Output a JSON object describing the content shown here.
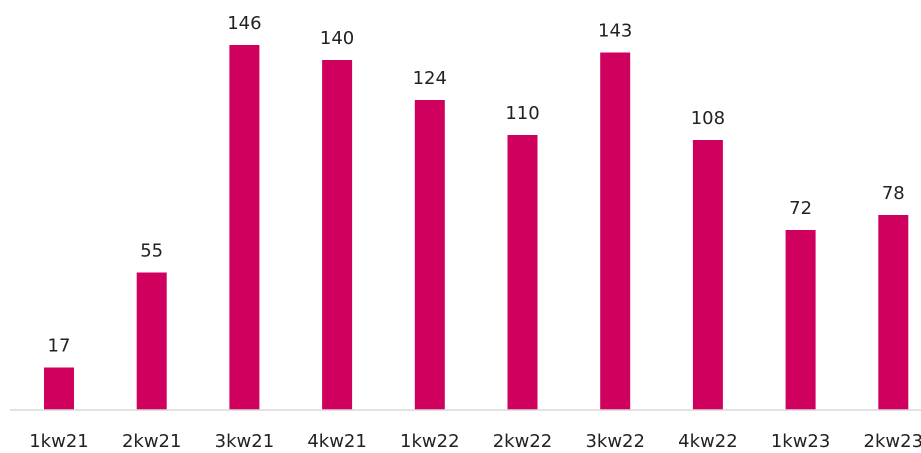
{
  "chart_data": {
    "type": "bar",
    "title": "",
    "xlabel": "",
    "ylabel": "",
    "categories": [
      "1kw21",
      "2kw21",
      "3kw21",
      "4kw21",
      "1kw22",
      "2kw22",
      "3kw22",
      "4kw22",
      "1kw23",
      "2kw23"
    ],
    "values": [
      17,
      55,
      146,
      140,
      124,
      110,
      143,
      108,
      72,
      78
    ],
    "ylim": [
      0,
      160
    ],
    "grid": false,
    "legend": "none",
    "bar_color": "#d0005f",
    "axis_color": "#d9d9d9"
  }
}
